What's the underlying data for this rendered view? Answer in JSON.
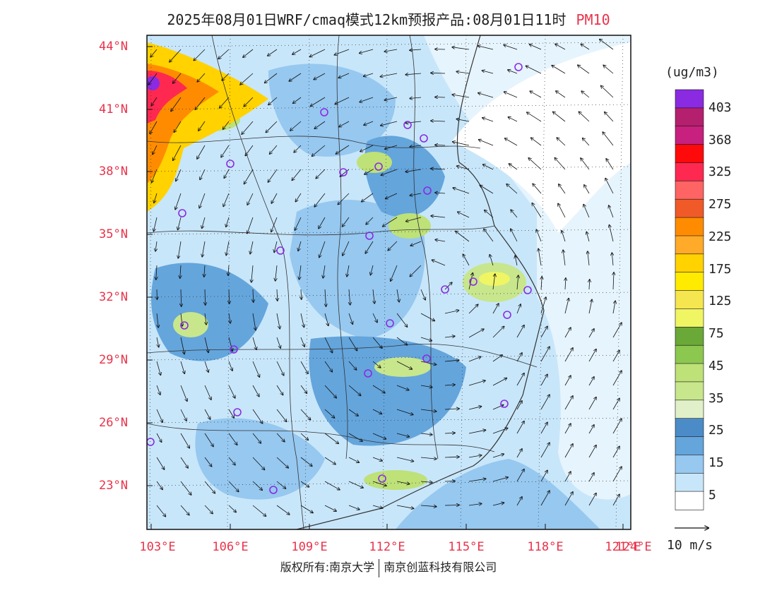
{
  "title": {
    "main": "2025年08月01日WRF/cmaq模式12km预报产品:08月01日11时",
    "variable": "PM10"
  },
  "map": {
    "lat_labels": [
      "44°N",
      "41°N",
      "38°N",
      "35°N",
      "32°N",
      "29°N",
      "26°N",
      "23°N"
    ],
    "lon_labels": [
      "103°E",
      "106°E",
      "109°E",
      "112°E",
      "115°E",
      "118°E",
      "121°E",
      "124°E"
    ],
    "accent_color": "#e8334a"
  },
  "colorbar": {
    "unit": "(ug/m3)",
    "labels": [
      "403",
      "368",
      "325",
      "275",
      "225",
      "175",
      "125",
      "75",
      "45",
      "35",
      "25",
      "15",
      "5"
    ],
    "colors": [
      "#8a2be2",
      "#b5206e",
      "#c8207e",
      "#ff0a0a",
      "#ff2850",
      "#ff6464",
      "#f05a28",
      "#ff8c00",
      "#ffaa28",
      "#ffd200",
      "#ffeb00",
      "#f5e650",
      "#f0f564",
      "#6aa838",
      "#8cc850",
      "#bee178",
      "#c8e68c",
      "#e1f0c8",
      "#4b8cc8",
      "#64a5dc",
      "#96c8f0",
      "#c8e6fa",
      "#ffffff"
    ]
  },
  "wind_legend": {
    "label": "10 m/s",
    "arrow_icon": "wind-vector-reference-icon"
  },
  "stations_icon": "monitoring-station-circle-icon",
  "footer": {
    "copyright": "版权所有:南京大学",
    "company": "南京创蓝科技有限公司"
  }
}
